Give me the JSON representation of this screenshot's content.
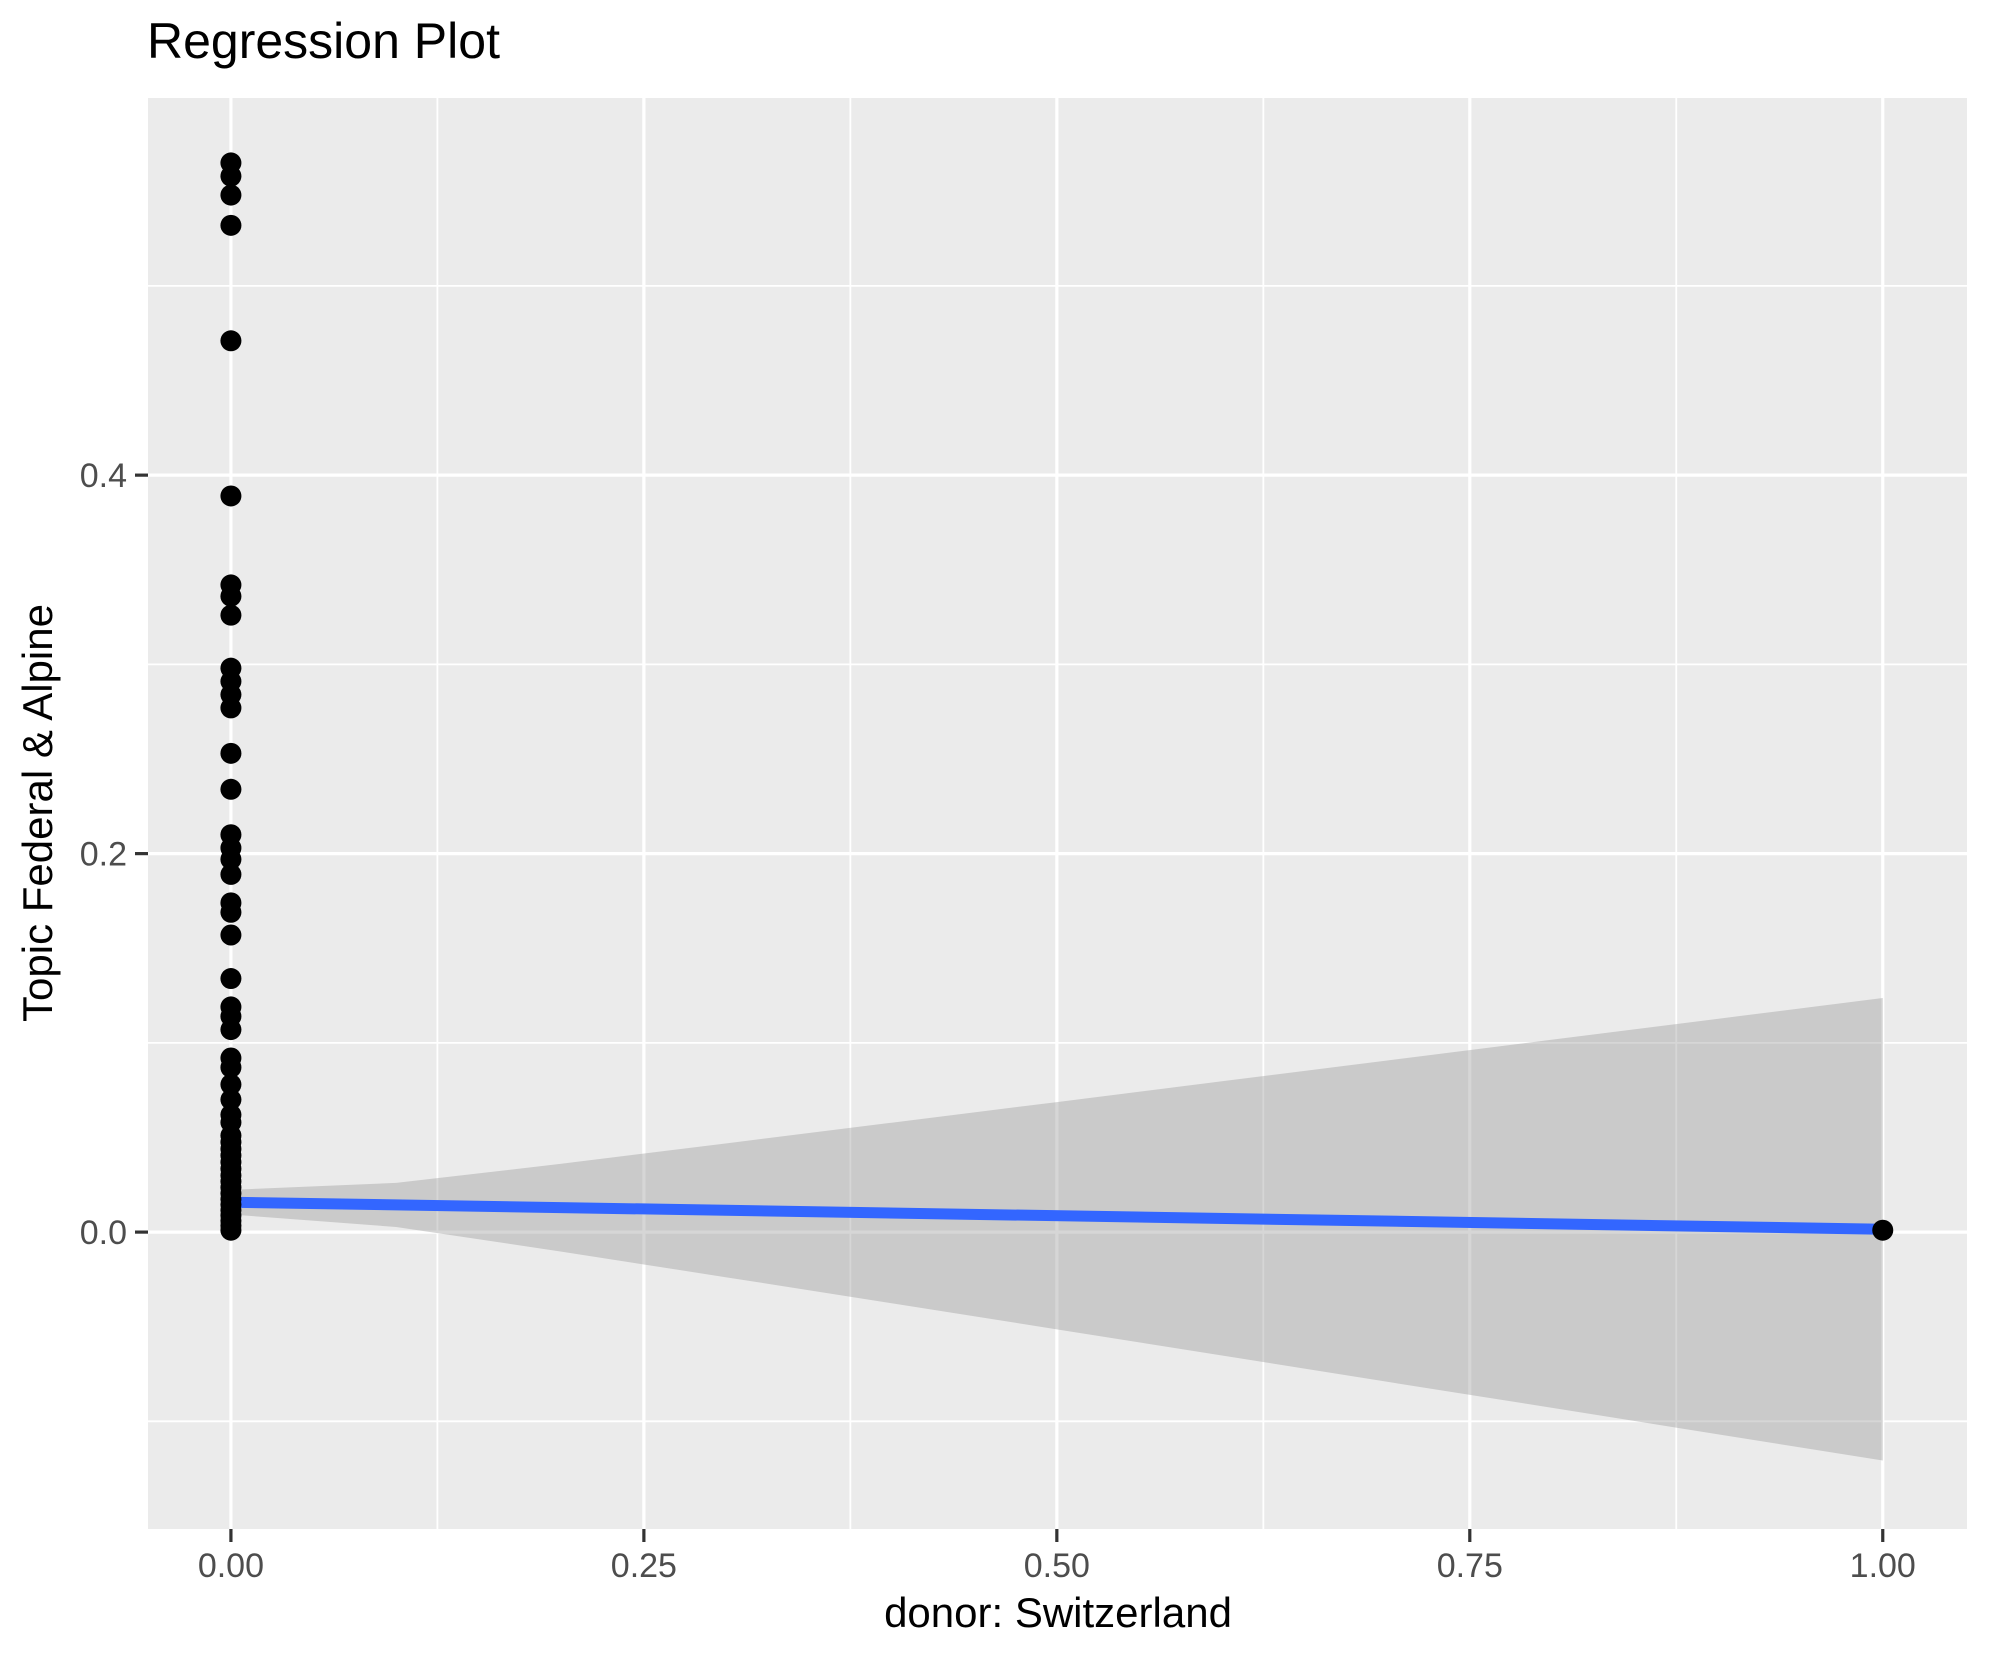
{
  "chart_data": {
    "type": "scatter",
    "title": "Regression Plot",
    "xlabel": "donor: Switzerland",
    "ylabel": "Topic Federal & Alpine",
    "xlim": [
      -0.0502,
      1.051
    ],
    "ylim": [
      -0.1569,
      0.5993
    ],
    "grid": "major+minor",
    "legend": "none",
    "x_ticks": [
      {
        "value": 0.0,
        "label": "0.00"
      },
      {
        "value": 0.25,
        "label": "0.25"
      },
      {
        "value": 0.5,
        "label": "0.50"
      },
      {
        "value": 0.75,
        "label": "0.75"
      },
      {
        "value": 1.0,
        "label": "1.00"
      }
    ],
    "y_ticks": [
      {
        "value": 0.0,
        "label": "0.0"
      },
      {
        "value": 0.2,
        "label": "0.2"
      },
      {
        "value": 0.4,
        "label": "0.4"
      }
    ],
    "x_minor": [
      0.125,
      0.375,
      0.625,
      0.875
    ],
    "y_minor": [
      -0.1,
      0.1,
      0.3,
      0.5
    ],
    "points": [
      [
        0,
        0.565
      ],
      [
        0,
        0.558
      ],
      [
        0,
        0.548
      ],
      [
        0,
        0.532
      ],
      [
        0,
        0.471
      ],
      [
        0,
        0.389
      ],
      [
        0,
        0.342
      ],
      [
        0,
        0.336
      ],
      [
        0,
        0.326
      ],
      [
        0,
        0.298
      ],
      [
        0,
        0.291
      ],
      [
        0,
        0.284
      ],
      [
        0,
        0.277
      ],
      [
        0,
        0.253
      ],
      [
        0,
        0.234
      ],
      [
        0,
        0.21
      ],
      [
        0,
        0.203
      ],
      [
        0,
        0.197
      ],
      [
        0,
        0.189
      ],
      [
        0,
        0.174
      ],
      [
        0,
        0.169
      ],
      [
        0,
        0.157
      ],
      [
        0,
        0.134
      ],
      [
        0,
        0.119
      ],
      [
        0,
        0.114
      ],
      [
        0,
        0.107
      ],
      [
        0,
        0.092
      ],
      [
        0,
        0.087
      ],
      [
        0,
        0.078
      ],
      [
        0,
        0.07
      ],
      [
        0,
        0.062
      ],
      [
        0,
        0.058
      ],
      [
        0,
        0.051
      ],
      [
        0,
        0.0476
      ],
      [
        0,
        0.044
      ],
      [
        0,
        0.0405
      ],
      [
        0,
        0.037
      ],
      [
        0,
        0.0335
      ],
      [
        0,
        0.03
      ],
      [
        0,
        0.0268
      ],
      [
        0,
        0.0236
      ],
      [
        0,
        0.0205
      ],
      [
        0,
        0.0174
      ],
      [
        0,
        0.0145
      ],
      [
        0,
        0.0116
      ],
      [
        0,
        0.0088
      ],
      [
        0,
        0.006
      ],
      [
        0,
        0.0034
      ],
      [
        0,
        0.001
      ],
      [
        1,
        0.001
      ]
    ],
    "regression_line": {
      "x": [
        0,
        1
      ],
      "y": [
        0.0158,
        0.0015
      ]
    },
    "confidence_band": {
      "x": [
        0.0,
        0.1,
        0.2,
        0.3,
        0.4,
        0.5,
        0.6,
        0.7,
        0.8,
        0.9,
        1.0
      ],
      "upper": [
        0.0223,
        0.026,
        0.0361,
        0.0469,
        0.0578,
        0.0687,
        0.0797,
        0.0907,
        0.1017,
        0.1127,
        0.1237
      ],
      "lower": [
        0.0093,
        0.0027,
        -0.0103,
        -0.0239,
        -0.0376,
        -0.0514,
        -0.0652,
        -0.0791,
        -0.0929,
        -0.1068,
        -0.1207
      ]
    },
    "colors": {
      "panel_background": "#EBEBEB",
      "gridline": "#FFFFFF",
      "point": "#000000",
      "regression_line": "#3366FF",
      "confidence_band": "rgba(153,153,153,0.40)",
      "tick_mark": "#333333",
      "tick_label": "#4D4D4D",
      "title_text": "#000000"
    }
  }
}
